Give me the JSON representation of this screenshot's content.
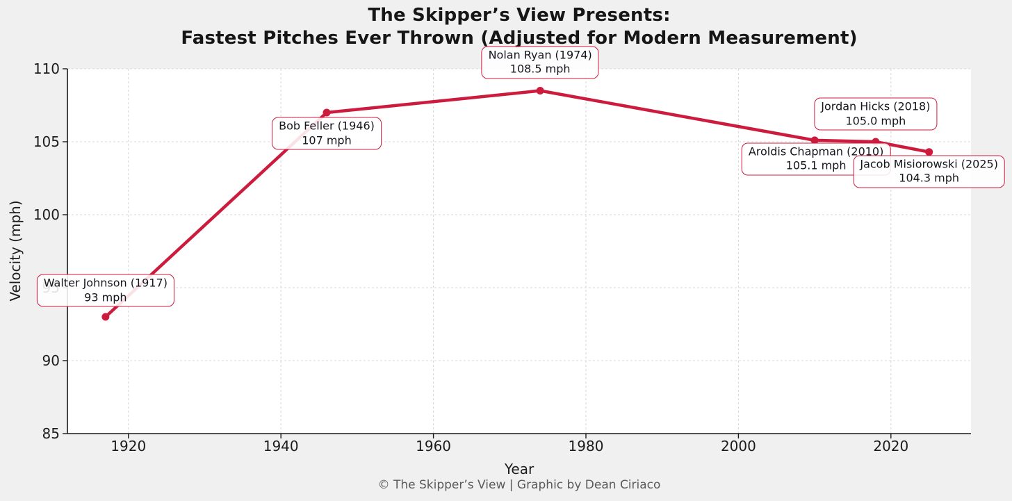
{
  "title": {
    "line1": "The Skipper’s View Presents:",
    "line2": "Fastest Pitches Ever Thrown (Adjusted for Modern Measurement)"
  },
  "footer": {
    "text": "© The Skipper’s View | Graphic by Dean Ciriaco"
  },
  "colors": {
    "accent": "#cd1b3e",
    "figure_bg": "#f0f0f0",
    "plot_bg": "#ffffff",
    "grid": "#d9d9d9",
    "spine": "#1a1a1a",
    "text": "#1c1c1c",
    "muted_text": "#5a5a5a",
    "annotation_bg": "rgba(255,255,255,0.87)"
  },
  "chart_data": {
    "type": "line",
    "title": "The Skipper’s View Presents: Fastest Pitches Ever Thrown (Adjusted for Modern Measurement)",
    "xlabel": "Year",
    "ylabel": "Velocity (mph)",
    "x": [
      1917,
      1946,
      1974,
      2010,
      2018,
      2025
    ],
    "y": [
      93,
      107,
      108.5,
      105.1,
      105.0,
      104.3
    ],
    "xticks": [
      1920,
      1940,
      1960,
      1980,
      2000,
      2020
    ],
    "yticks": [
      85,
      90,
      95,
      100,
      105,
      110
    ],
    "xlim": [
      1912,
      2030.5
    ],
    "ylim": [
      85,
      110
    ],
    "grid": true,
    "legend": false,
    "line_color": "#cd1b3e",
    "marker": "circle",
    "annotations": [
      {
        "label": "Walter Johnson (1917)",
        "value": "93 mph",
        "x": 1917,
        "y": 93
      },
      {
        "label": "Bob Feller (1946)",
        "value": "107 mph",
        "x": 1946,
        "y": 107
      },
      {
        "label": "Nolan Ryan (1974)",
        "value": "108.5 mph",
        "x": 1974,
        "y": 108.5
      },
      {
        "label": "Aroldis Chapman (2010)",
        "value": "105.1 mph",
        "x": 2010,
        "y": 105.1
      },
      {
        "label": "Jordan Hicks (2018)",
        "value": "105.0 mph",
        "x": 2018,
        "y": 105.0
      },
      {
        "label": "Jacob Misiorowski (2025)",
        "value": "104.3 mph",
        "x": 2025,
        "y": 104.3
      }
    ]
  }
}
